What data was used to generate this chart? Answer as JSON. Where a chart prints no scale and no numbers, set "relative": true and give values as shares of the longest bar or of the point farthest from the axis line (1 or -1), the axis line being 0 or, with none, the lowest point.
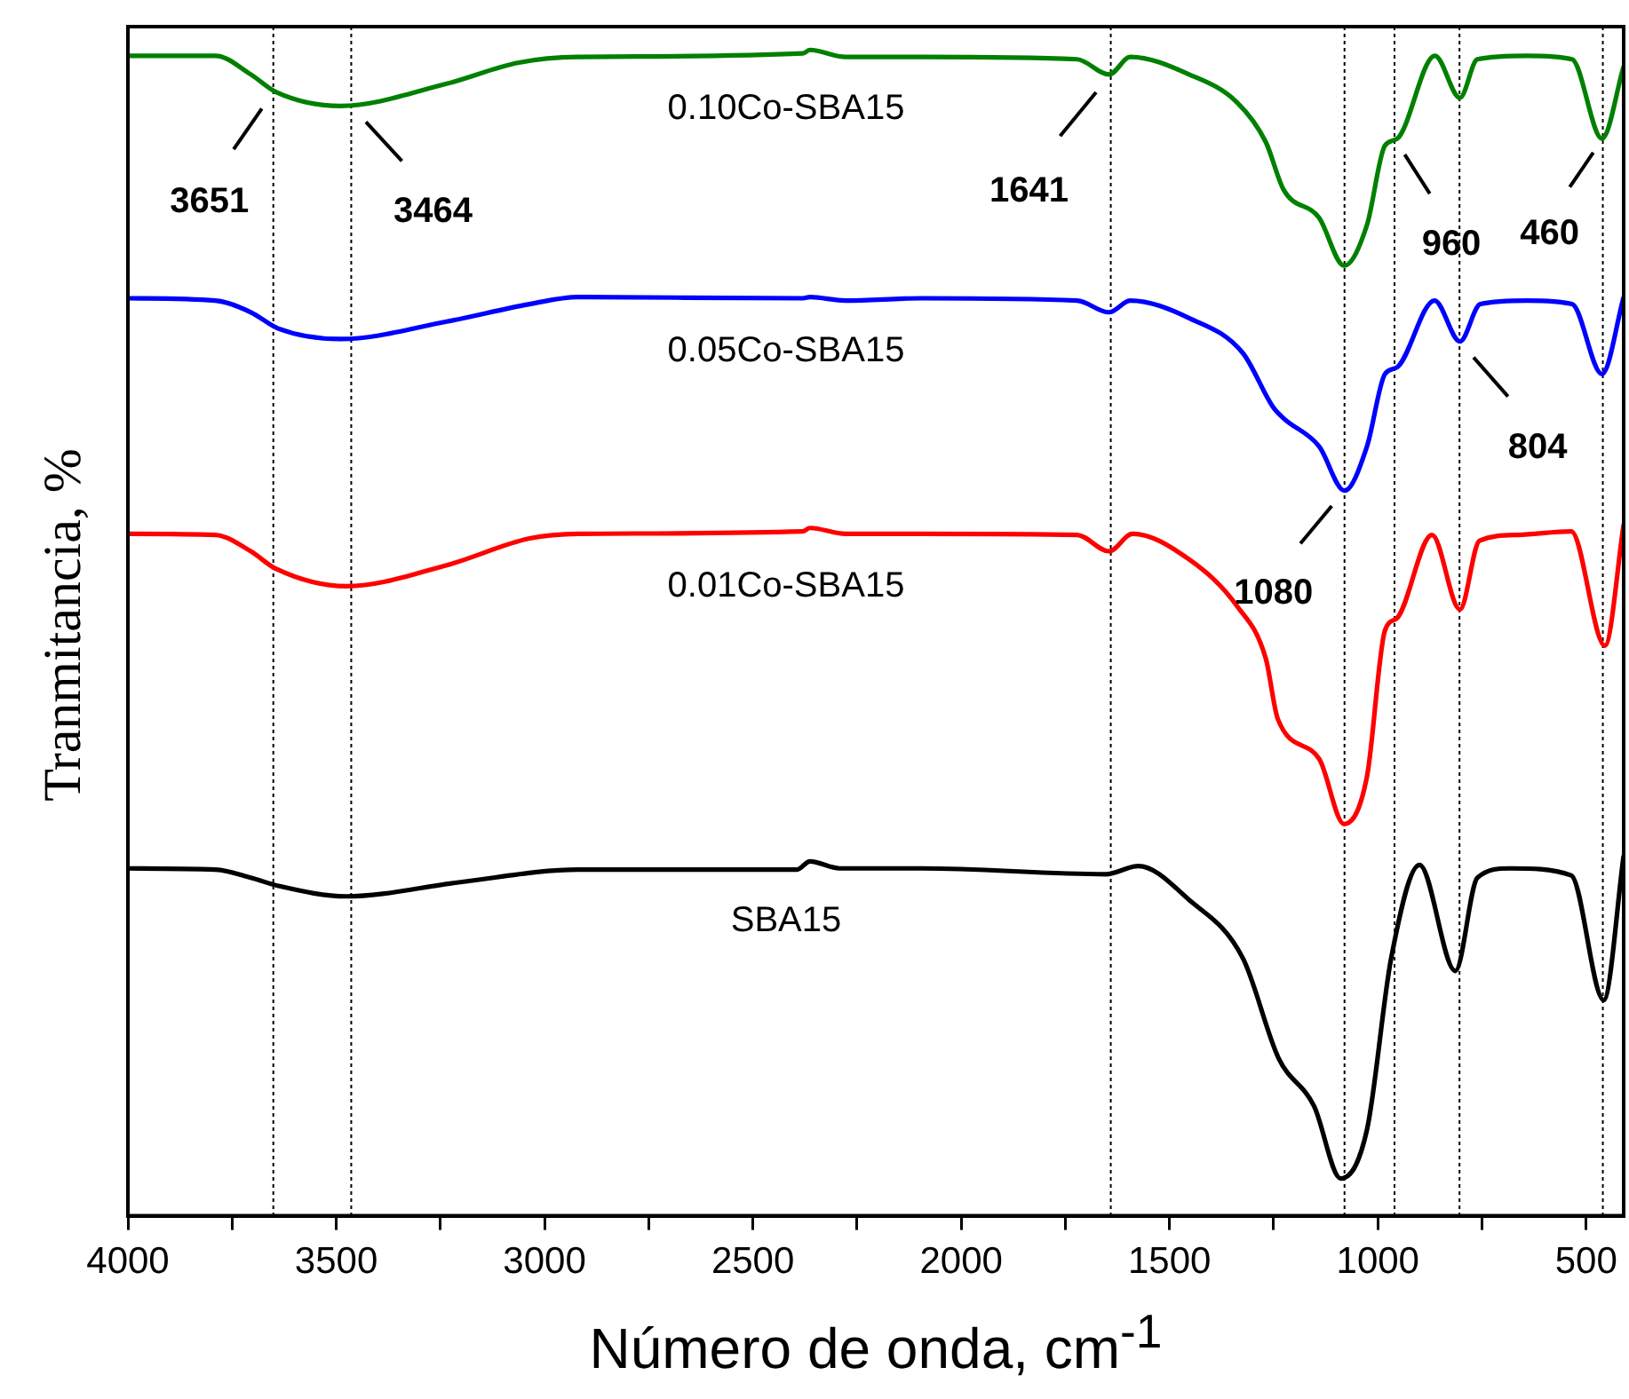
{
  "chart_data": {
    "type": "line",
    "relative": true,
    "xlabel": "Número de onda, cm$^{-1}$",
    "ylabel": "Tranmitancia, %",
    "xlim": [
      4000,
      410
    ],
    "xticks": [
      4000,
      {
        "value": 3750,
        "label": null
      },
      3500,
      {
        "value": 3250,
        "label": null
      },
      3000,
      {
        "value": 2750,
        "label": null
      },
      2500,
      {
        "value": 2250,
        "label": null
      },
      2000,
      {
        "value": 1750,
        "label": null
      },
      1500,
      {
        "value": 1250,
        "label": null
      },
      1000,
      {
        "value": 750,
        "label": null
      },
      500
    ],
    "grid": false,
    "legend": false,
    "marker": "none",
    "line_style": "solid",
    "series": [
      {
        "name": "0.10Co-SBA15",
        "color": "#008000",
        "x": [
          4000,
          3790,
          3705,
          3645,
          3490,
          3235,
          3064,
          2919,
          2380,
          2363,
          2278,
          2094,
          1722,
          1645,
          1594,
          1453,
          1338,
          1269,
          1226,
          1141,
          1081,
          1026,
          983,
          953,
          863,
          803,
          761,
          641,
          534,
          462,
          410
        ],
        "values": [
          0.995,
          0.995,
          0.979,
          0.964,
          0.952,
          0.971,
          0.989,
          0.994,
          0.997,
          1.0,
          0.994,
          0.994,
          0.992,
          0.979,
          0.994,
          0.979,
          0.955,
          0.921,
          0.88,
          0.856,
          0.815,
          0.85,
          0.918,
          0.924,
          0.995,
          0.959,
          0.992,
          0.995,
          0.992,
          0.924,
          0.986
        ]
      },
      {
        "name": "0.05Co-SBA15",
        "color": "#0000ff",
        "x": [
          4000,
          3790,
          3705,
          3639,
          3490,
          3235,
          3036,
          2919,
          2380,
          2363,
          2278,
          2094,
          1722,
          1645,
          1594,
          1453,
          1324,
          1252,
          1226,
          1141,
          1080,
          1026,
          983,
          953,
          864,
          803,
          754,
          641,
          534,
          462,
          410
        ],
        "values": [
          0.787,
          0.785,
          0.775,
          0.761,
          0.752,
          0.767,
          0.782,
          0.788,
          0.787,
          0.788,
          0.785,
          0.787,
          0.785,
          0.775,
          0.785,
          0.77,
          0.74,
          0.694,
          0.684,
          0.66,
          0.622,
          0.66,
          0.722,
          0.728,
          0.785,
          0.75,
          0.782,
          0.785,
          0.782,
          0.722,
          0.788
        ]
      },
      {
        "name": "0.01Co-SBA15",
        "color": "#ff0000",
        "x": [
          4000,
          3790,
          3705,
          3645,
          3476,
          3235,
          3036,
          2919,
          2380,
          2363,
          2278,
          2094,
          1722,
          1645,
          1589,
          1453,
          1338,
          1269,
          1240,
          1141,
          1081,
          1026,
          983,
          953,
          870,
          803,
          756,
          664,
          536,
          455,
          410
        ],
        "values": [
          0.585,
          0.584,
          0.57,
          0.555,
          0.54,
          0.558,
          0.581,
          0.585,
          0.587,
          0.59,
          0.585,
          0.585,
          0.584,
          0.57,
          0.585,
          0.563,
          0.523,
          0.478,
          0.426,
          0.392,
          0.336,
          0.377,
          0.502,
          0.513,
          0.584,
          0.52,
          0.579,
          0.584,
          0.587,
          0.489,
          0.593
        ]
      },
      {
        "name": "SBA15",
        "color": "#000000",
        "x": [
          4000,
          3790,
          3705,
          3639,
          3476,
          3206,
          2919,
          2394,
          2363,
          2292,
          2094,
          1653,
          1575,
          1453,
          1324,
          1238,
          1153,
          1089,
          1026,
          968,
          900,
          814,
          761,
          683,
          536,
          458,
          410
        ],
        "values": [
          0.298,
          0.297,
          0.29,
          0.283,
          0.274,
          0.286,
          0.297,
          0.297,
          0.304,
          0.298,
          0.298,
          0.293,
          0.3,
          0.271,
          0.221,
          0.135,
          0.094,
          0.032,
          0.074,
          0.221,
          0.301,
          0.21,
          0.29,
          0.298,
          0.292,
          0.185,
          0.309
        ]
      }
    ],
    "ref_lines": [
      {
        "axis": "x",
        "value": 3651,
        "color": "#000000",
        "line_style": "dotted"
      },
      {
        "axis": "x",
        "value": 3464,
        "color": "#000000",
        "line_style": "dotted"
      },
      {
        "axis": "x",
        "value": 1641,
        "color": "#000000",
        "line_style": "dotted"
      },
      {
        "axis": "x",
        "value": 1080,
        "color": "#000000",
        "line_style": "dotted"
      },
      {
        "axis": "x",
        "value": 960,
        "color": "#000000",
        "line_style": "dotted"
      },
      {
        "axis": "x",
        "value": 804,
        "color": "#000000",
        "line_style": "dotted"
      },
      {
        "axis": "x",
        "value": 460,
        "color": "#000000",
        "line_style": "dotted"
      }
    ],
    "annotations": [
      {
        "text": "3651",
        "x": 3651,
        "y": 0.964
      },
      {
        "text": "3464",
        "x": 3464,
        "y": 0.952
      },
      {
        "text": "1641",
        "x": 1641,
        "y": 0.979
      },
      {
        "text": "1080",
        "x": 1080,
        "y": 0.622
      },
      {
        "text": "960",
        "x": 960,
        "y": 0.924
      },
      {
        "text": "804",
        "x": 804,
        "y": 0.75
      },
      {
        "text": "460",
        "x": 460,
        "y": 0.924
      }
    ]
  }
}
